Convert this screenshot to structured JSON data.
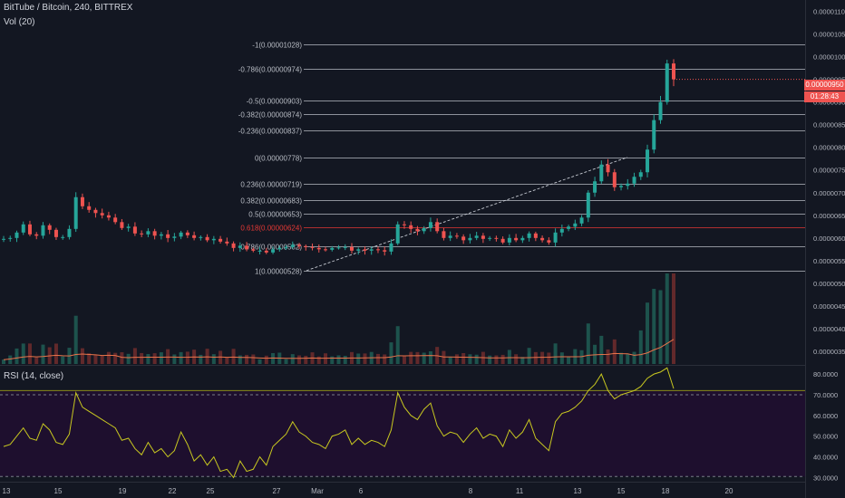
{
  "header": {
    "title": "BitTube / Bitcoin, 240, BITTREX",
    "volume_label": "Vol (20)",
    "rsi_label": "RSI (14, close)"
  },
  "price_axis": {
    "ticks": [
      "0.00001100",
      "0.00001050",
      "0.00001000",
      "0.00000950",
      "0.00000900",
      "0.00000850",
      "0.00000800",
      "0.00000750",
      "0.00000700",
      "0.00000650",
      "0.00000600",
      "0.00000550",
      "0.00000500",
      "0.00000450",
      "0.00000400",
      "0.00000350"
    ],
    "current_price": "0.00000950",
    "countdown": "01:28:43"
  },
  "rsi_axis": {
    "ticks": [
      "80.0000",
      "70.0000",
      "60.0000",
      "50.0000",
      "40.0000",
      "30.0000"
    ]
  },
  "time_axis": {
    "labels": [
      "13",
      "15",
      "19",
      "22",
      "25",
      "27",
      "Mar",
      "6",
      "8",
      "11",
      "13",
      "15",
      "18",
      "20"
    ]
  },
  "fib_levels": [
    {
      "label": "-1(0.00001028)",
      "price": 1.028e-05
    },
    {
      "label": "-0.786(0.00000974)",
      "price": 9.74e-06
    },
    {
      "label": "-0.5(0.00000903)",
      "price": 9.03e-06
    },
    {
      "label": "-0.382(0.00000874)",
      "price": 8.74e-06
    },
    {
      "label": "-0.236(0.00000837)",
      "price": 8.37e-06
    },
    {
      "label": "0(0.00000778)",
      "price": 7.78e-06
    },
    {
      "label": "0.236(0.00000719)",
      "price": 7.19e-06
    },
    {
      "label": "0.382(0.00000683)",
      "price": 6.83e-06
    },
    {
      "label": "0.5(0.00000653)",
      "price": 6.53e-06
    },
    {
      "label": "0.618(0.00000624)",
      "price": 6.24e-06
    },
    {
      "label": "0.786(0.00000582)",
      "price": 5.82e-06
    },
    {
      "label": "1(0.00000528)",
      "price": 5.28e-06
    }
  ],
  "colors": {
    "background": "#131722",
    "up": "#26a69a",
    "down": "#ef5350",
    "rsi_line": "#c8c820",
    "rsi_band": "#1e0f2e",
    "fib_line": "#b8bcc4",
    "fib_618": "#e53935",
    "volume_ma": "#e8734a"
  },
  "chart_data": {
    "type": "candlestick",
    "close_path": [
      5.98e-06,
      6e-06,
      6.12e-06,
      6.3e-06,
      6.08e-06,
      6.05e-06,
      6.28e-06,
      6.18e-06,
      6.02e-06,
      6.02e-06,
      6.2e-06,
      6.9e-06,
      6.7e-06,
      6.62e-06,
      6.55e-06,
      6.5e-06,
      6.45e-06,
      6.35e-06,
      6.22e-06,
      6.25e-06,
      6.1e-06,
      6.08e-06,
      6.15e-06,
      6.05e-06,
      6.08e-06,
      6e-06,
      6.03e-06,
      6.12e-06,
      6.06e-06,
      6e-06,
      6.02e-06,
      5.95e-06,
      5.98e-06,
      5.92e-06,
      5.88e-06,
      5.78e-06,
      5.83e-06,
      5.75e-06,
      5.72e-06,
      5.72e-06,
      5.68e-06,
      5.75e-06,
      5.78e-06,
      5.8e-06,
      5.85e-06,
      5.82e-06,
      5.8e-06,
      5.78e-06,
      5.75e-06,
      5.74e-06,
      5.78e-06,
      5.79e-06,
      5.8e-06,
      5.72e-06,
      5.75e-06,
      5.72e-06,
      5.75e-06,
      5.73e-06,
      5.7e-06,
      5.88e-06,
      6.3e-06,
      6.28e-06,
      6.2e-06,
      6.15e-06,
      6.22e-06,
      6.35e-06,
      6.15e-06,
      6e-06,
      6.05e-06,
      6.03e-06,
      5.95e-06,
      6e-06,
      6.05e-06,
      5.98e-06,
      6e-06,
      5.98e-06,
      5.9e-06,
      6e-06,
      5.95e-06,
      6e-06,
      6.1e-06,
      6e-06,
      5.95e-06,
      5.9e-06,
      6.12e-06,
      6.2e-06,
      6.25e-06,
      6.32e-06,
      6.45e-06,
      7e-06,
      7.25e-06,
      7.62e-06,
      7.45e-06,
      7.12e-06,
      7.15e-06,
      7.2e-06,
      7.35e-06,
      7.45e-06,
      7.95e-06,
      8.6e-06,
      9e-06,
      9.85e-06,
      9.5e-06
    ],
    "rsi_path": [
      45,
      46,
      50,
      54,
      49,
      48,
      56,
      53,
      47,
      46,
      51,
      71,
      64,
      62,
      60,
      58,
      56,
      54,
      48,
      49,
      44,
      41,
      47,
      42,
      44,
      40,
      43,
      52,
      46,
      38,
      41,
      36,
      40,
      33,
      34,
      30,
      38,
      33,
      34,
      40,
      36,
      45,
      48,
      51,
      57,
      52,
      50,
      47,
      46,
      44,
      50,
      51,
      53,
      46,
      49,
      46,
      48,
      47,
      45,
      53,
      71,
      64,
      60,
      58,
      63,
      66,
      55,
      50,
      52,
      51,
      47,
      51,
      54,
      49,
      51,
      50,
      45,
      53,
      49,
      52,
      58,
      49,
      46,
      43,
      57,
      61,
      62,
      64,
      67,
      72,
      75,
      80,
      72,
      68,
      70,
      71,
      72,
      74,
      78,
      80,
      81,
      83,
      73
    ],
    "rsi_ylim": [
      28,
      84
    ],
    "price_ylim": [
      3.2e-06,
      1.125e-05
    ]
  }
}
